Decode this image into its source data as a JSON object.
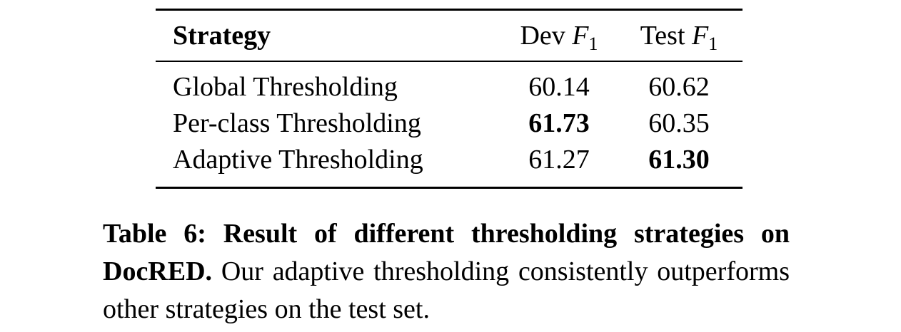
{
  "table": {
    "headers": {
      "strategy": "Strategy",
      "dev_prefix": "Dev",
      "dev_math": "F",
      "dev_sub": "1",
      "test_prefix": "Test",
      "test_math": "F",
      "test_sub": "1"
    },
    "rows": [
      {
        "strategy": "Global Thresholding",
        "dev": "60.14",
        "test": "60.62",
        "dev_bold": false,
        "test_bold": false
      },
      {
        "strategy": "Per-class Thresholding",
        "dev": "61.73",
        "test": "60.35",
        "dev_bold": true,
        "test_bold": false
      },
      {
        "strategy": "Adaptive Thresholding",
        "dev": "61.27",
        "test": "61.30",
        "dev_bold": false,
        "test_bold": true
      }
    ]
  },
  "caption": {
    "lead": "Table 6: Result of different thresholding strategies on DocRED.",
    "body": " Our adaptive thresholding consistently outperforms other strategies on the test set."
  }
}
